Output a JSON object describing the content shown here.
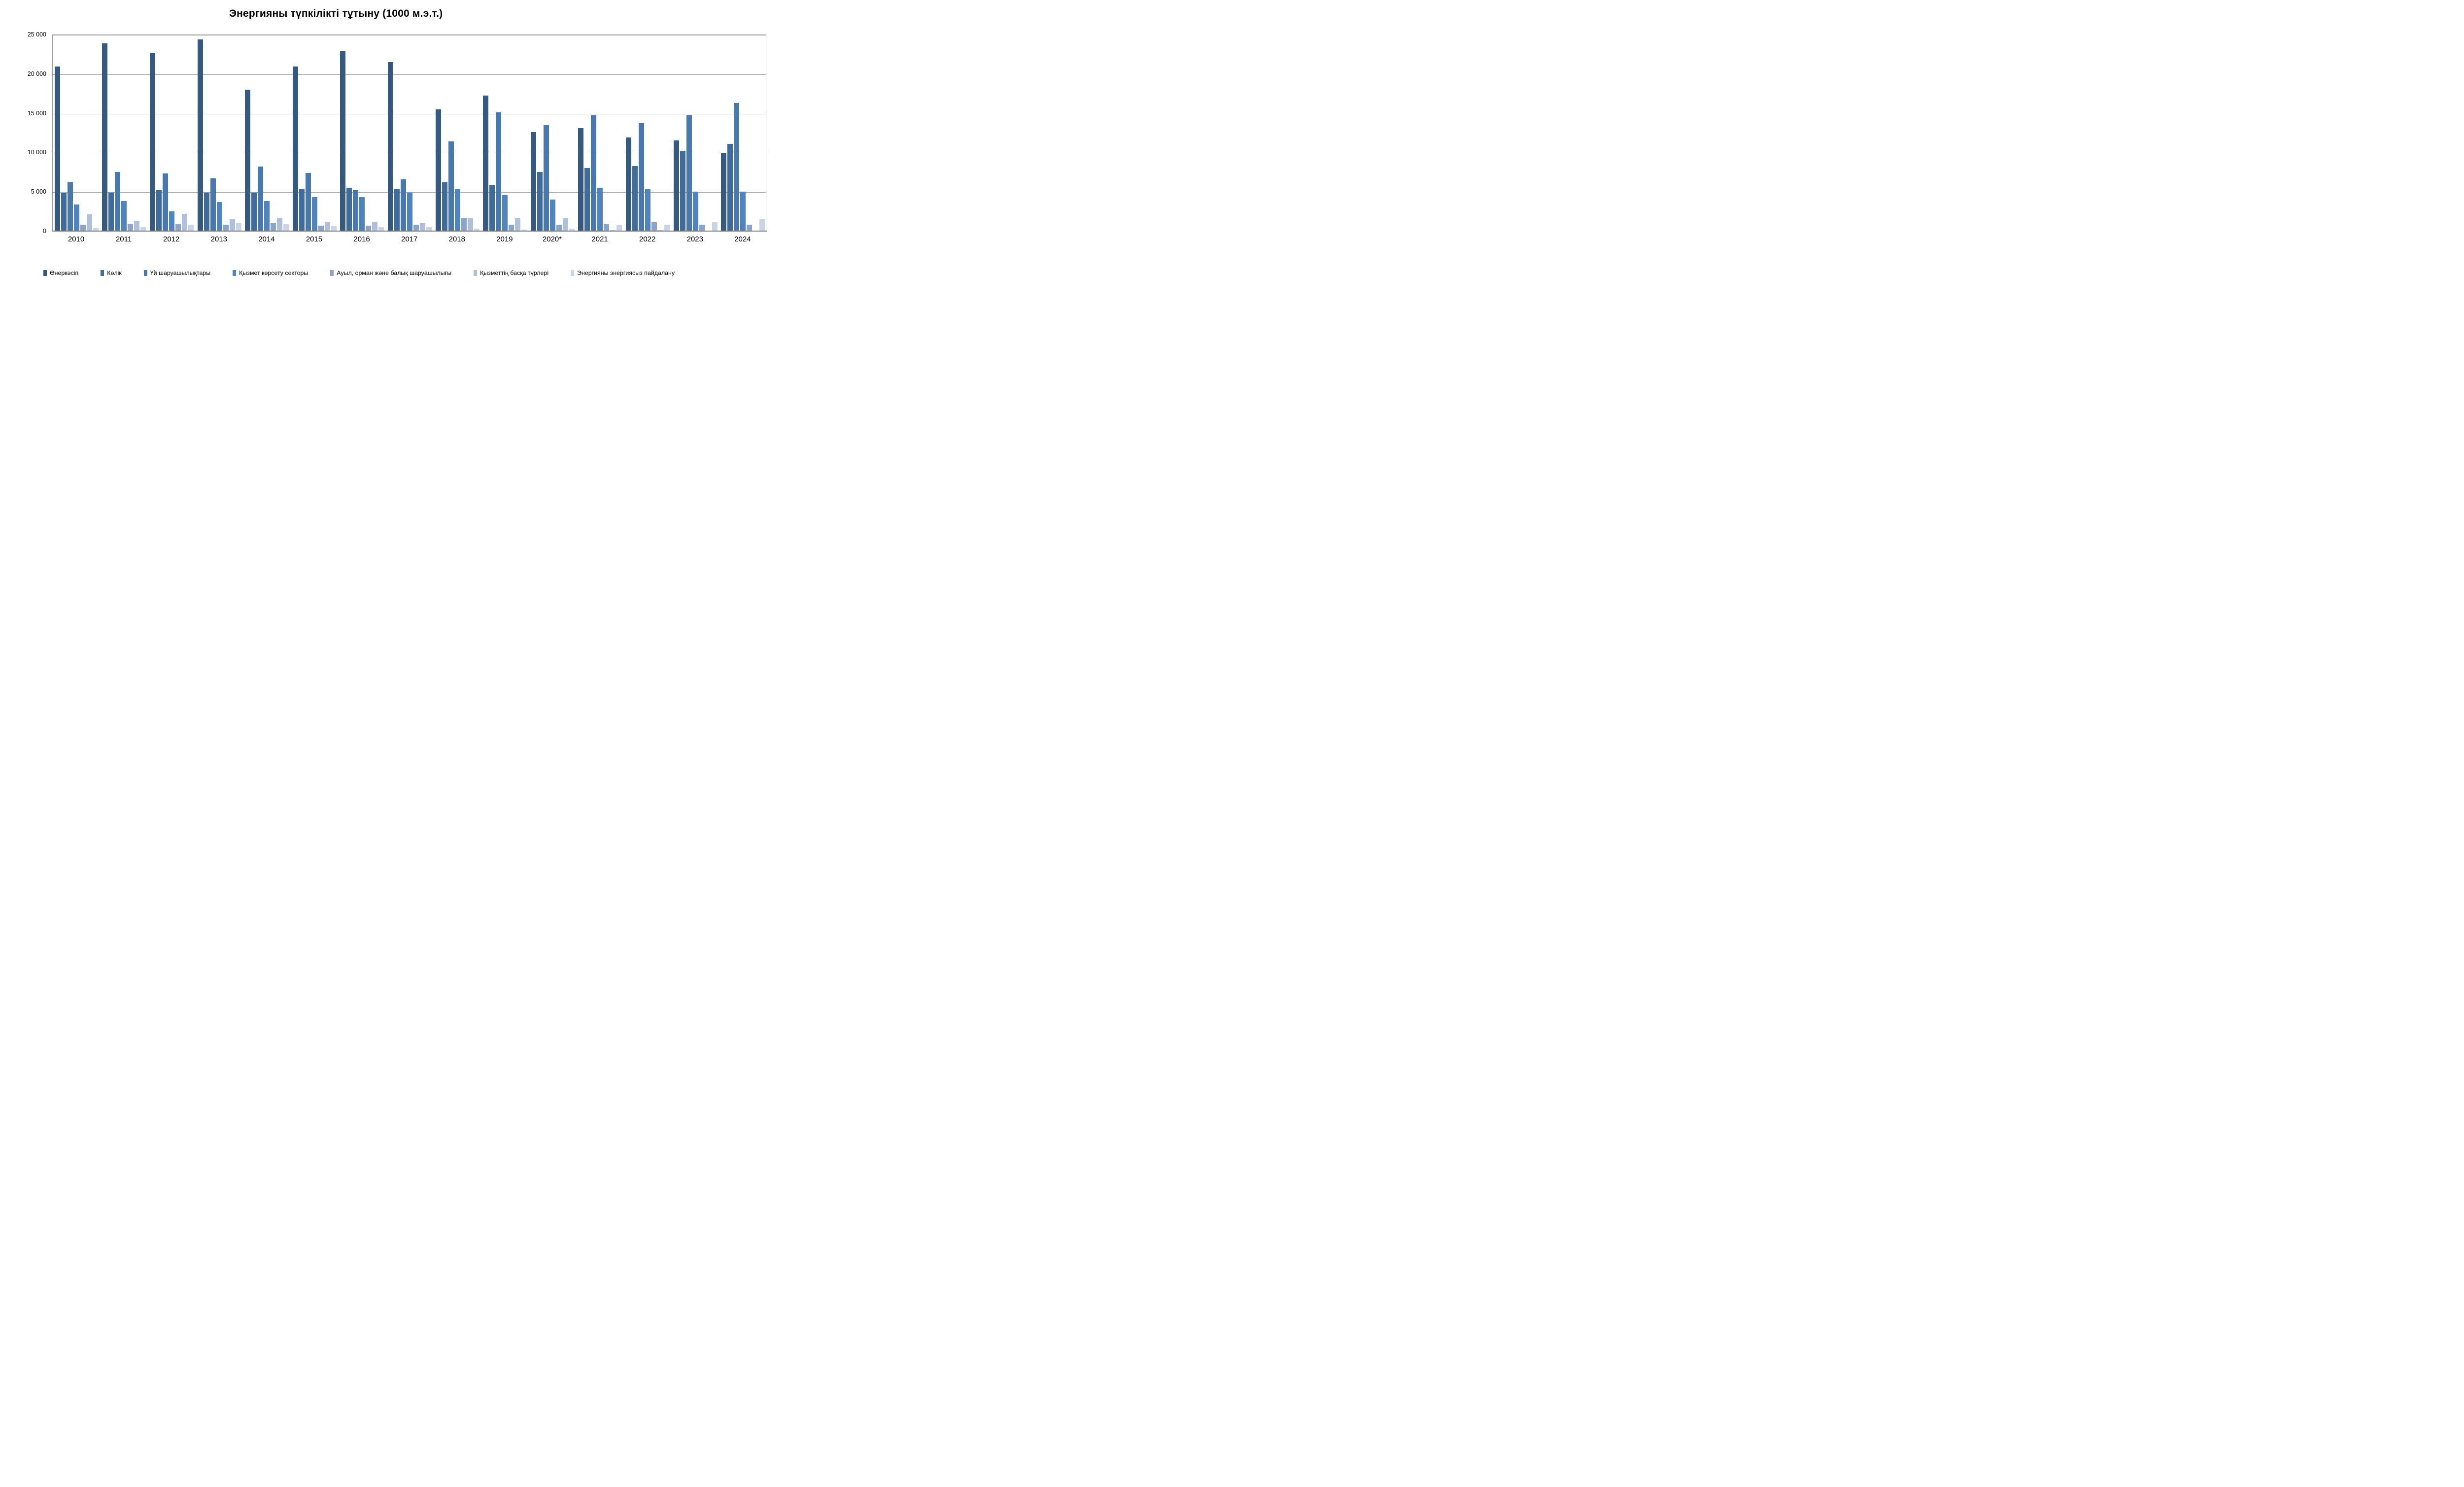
{
  "chart_data": {
    "type": "bar",
    "title": "Энергияны түпкілікті тұтыну (1000 м.э.т.)",
    "categories": [
      "2010",
      "2011",
      "2012",
      "2013",
      "2014",
      "2015",
      "2016",
      "2017",
      "2018",
      "2019",
      "2020*",
      "2021",
      "2022",
      "2023",
      "2024"
    ],
    "series": [
      {
        "name": "Өнеркәсіп",
        "color": "#35597F",
        "values": [
          20900,
          23900,
          22700,
          24400,
          18000,
          20900,
          22900,
          21500,
          15500,
          17200,
          12600,
          13100,
          11900,
          11500,
          9900
        ]
      },
      {
        "name": "Көлік",
        "color": "#3F6C9C",
        "values": [
          4800,
          4900,
          5200,
          4900,
          4900,
          5300,
          5500,
          5300,
          6200,
          5800,
          7500,
          8000,
          8300,
          10200,
          11100
        ]
      },
      {
        "name": "Үй шаруашылықтары",
        "color": "#4878AD",
        "values": [
          6200,
          7500,
          7300,
          6700,
          8200,
          7400,
          5200,
          6600,
          11400,
          15100,
          13500,
          14700,
          13700,
          14700,
          16300
        ]
      },
      {
        "name": "Қызмет көрсету секторы",
        "color": "#5084C1",
        "values": [
          3400,
          3800,
          2500,
          3700,
          3800,
          4300,
          4300,
          4900,
          5300,
          4600,
          4000,
          5500,
          5300,
          5000,
          5000
        ]
      },
      {
        "name": "Ауыл, орман және балық шаруашылығы",
        "color": "#8CA3CE",
        "values": [
          800,
          900,
          900,
          800,
          1000,
          700,
          700,
          800,
          1700,
          800,
          800,
          900,
          1100,
          800,
          800
        ]
      },
      {
        "name": "Қызметтің басқа түрлері",
        "color": "#AFC0DE",
        "values": [
          2100,
          1300,
          2200,
          1500,
          1700,
          1100,
          1200,
          1000,
          1600,
          1600,
          1600,
          100,
          100,
          0,
          0
        ]
      },
      {
        "name": "Энергияны энергиясыз пайдалану",
        "color": "#C9D4E8",
        "values": [
          400,
          500,
          800,
          1000,
          900,
          600,
          500,
          500,
          300,
          200,
          300,
          800,
          800,
          1100,
          1500
        ]
      }
    ],
    "ylim": [
      0,
      25000
    ],
    "yticks": [
      {
        "value": 0,
        "label": "0"
      },
      {
        "value": 5000,
        "label": "5 000"
      },
      {
        "value": 10000,
        "label": "10 000"
      },
      {
        "value": 15000,
        "label": "15 000"
      },
      {
        "value": 20000,
        "label": "20 000"
      },
      {
        "value": 25000,
        "label": "25 000"
      }
    ],
    "grid": true,
    "legend_position": "bottom"
  }
}
